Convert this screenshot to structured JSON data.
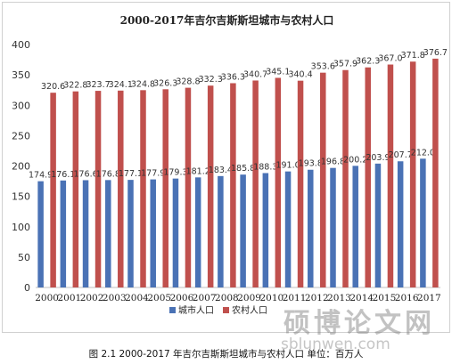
{
  "chart_data": {
    "type": "bar",
    "title": "2000-2017年吉尔吉斯斯坦城市与农村人口",
    "categories": [
      "2000",
      "2001",
      "2002",
      "2003",
      "2004",
      "2005",
      "2006",
      "2007",
      "2008",
      "2009",
      "2010",
      "2011",
      "2012",
      "2013",
      "2014",
      "2015",
      "2016",
      "2017"
    ],
    "series": [
      {
        "name": "城市人口",
        "color": "#4a72b5",
        "values": [
          174.9,
          176.1,
          176.6,
          176.8,
          177.1,
          177.9,
          179.3,
          181.2,
          183.4,
          185.8,
          188.3,
          191.0,
          193.8,
          196.8,
          200.2,
          203.9,
          207.7,
          212.0
        ]
      },
      {
        "name": "农村人口",
        "color": "#c0504d",
        "values": [
          320.6,
          322.8,
          323.7,
          324.1,
          324.8,
          326.3,
          328.8,
          332.3,
          336.3,
          340.7,
          345.1,
          340.4,
          353.6,
          357.9,
          362.3,
          367.0,
          371.8,
          376.7
        ]
      }
    ],
    "value_labels": {
      "城市人口": [
        "174.9",
        "176.1",
        "176.6",
        "176.8",
        "177.1",
        "177.9",
        "179.3",
        "181.2",
        "183.4",
        "185.8",
        "188.3",
        "191.0",
        "193.8",
        "196.8",
        "200.2",
        "203.9",
        "207.7",
        "212.0"
      ],
      "农村人口": [
        "320.6",
        "322.8",
        "323.7",
        "324.1",
        "324.8",
        "326.3",
        "328.8",
        "332.3",
        "336.3",
        "340.7",
        "345.1",
        "340.4",
        "353.6",
        "357.9",
        "362.3",
        "367.0",
        "371.8",
        "376.7"
      ]
    },
    "ylim": [
      0,
      400
    ],
    "yticks": [
      "0",
      "50",
      "100",
      "150",
      "200",
      "250",
      "300",
      "350",
      "400"
    ],
    "legend_position": "bottom",
    "grid": false,
    "xlabel": "",
    "ylabel": ""
  },
  "caption": "图 2.1 2000-2017 年吉尔吉斯斯坦城市与农村人口    单位：百万人",
  "watermark": "硕博论文网",
  "watermark_url": "sblunwen.com"
}
